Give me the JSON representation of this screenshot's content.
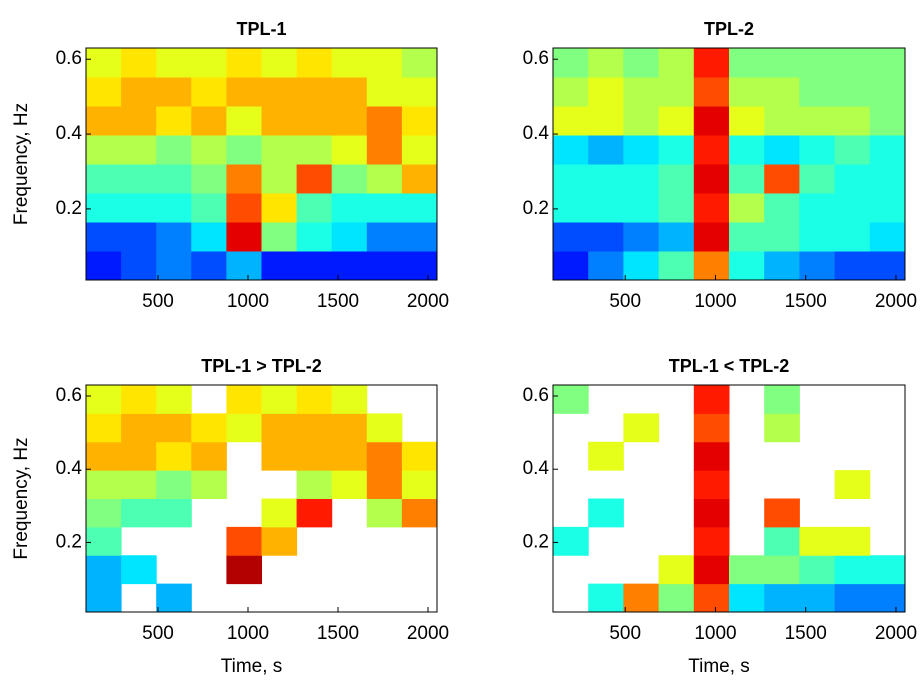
{
  "chart_data": [
    {
      "type": "heatmap",
      "title": "TPL-1",
      "ylabel": "Frequency, Hz",
      "colormap": "jet",
      "xlim": [
        100,
        2050
      ],
      "ylim": [
        0.01,
        0.63
      ],
      "xticks": [
        500,
        1000,
        1500,
        2000
      ],
      "yticks": [
        0.2,
        0.4,
        0.6
      ],
      "xbins": [
        100,
        295,
        490,
        685,
        880,
        1075,
        1270,
        1465,
        1660,
        1855,
        2050
      ],
      "ybins": [
        0.01,
        0.0875,
        0.165,
        0.2425,
        0.32,
        0.3975,
        0.475,
        0.5525,
        0.63
      ],
      "z": [
        [
          0.15,
          0.2,
          0.25,
          0.2,
          0.3,
          0.15,
          0.15,
          0.15,
          0.15,
          0.15
        ],
        [
          0.2,
          0.2,
          0.25,
          0.35,
          0.9,
          0.5,
          0.4,
          0.35,
          0.25,
          0.25
        ],
        [
          0.4,
          0.4,
          0.4,
          0.45,
          0.8,
          0.65,
          0.45,
          0.4,
          0.4,
          0.4
        ],
        [
          0.45,
          0.45,
          0.45,
          0.5,
          0.75,
          0.55,
          0.8,
          0.5,
          0.55,
          0.7
        ],
        [
          0.55,
          0.55,
          0.5,
          0.55,
          0.5,
          0.55,
          0.55,
          0.6,
          0.75,
          0.6
        ],
        [
          0.7,
          0.7,
          0.65,
          0.7,
          0.6,
          0.7,
          0.7,
          0.7,
          0.75,
          0.65
        ],
        [
          0.65,
          0.7,
          0.7,
          0.65,
          0.7,
          0.7,
          0.7,
          0.7,
          0.6,
          0.6
        ],
        [
          0.6,
          0.65,
          0.6,
          0.6,
          0.65,
          0.6,
          0.65,
          0.6,
          0.6,
          0.55
        ]
      ]
    },
    {
      "type": "heatmap",
      "title": "TPL-2",
      "colormap": "jet",
      "xlim": [
        100,
        2050
      ],
      "ylim": [
        0.01,
        0.63
      ],
      "xticks": [
        500,
        1000,
        1500,
        2000
      ],
      "yticks": [
        0.2,
        0.4,
        0.6
      ],
      "xbins": [
        100,
        295,
        490,
        685,
        880,
        1075,
        1270,
        1465,
        1660,
        1855,
        2050
      ],
      "ybins": [
        0.01,
        0.0875,
        0.165,
        0.2425,
        0.32,
        0.3975,
        0.475,
        0.5525,
        0.63
      ],
      "z": [
        [
          0.15,
          0.25,
          0.35,
          0.45,
          0.75,
          0.4,
          0.3,
          0.25,
          0.2,
          0.2
        ],
        [
          0.2,
          0.2,
          0.25,
          0.3,
          0.9,
          0.45,
          0.45,
          0.4,
          0.4,
          0.35
        ],
        [
          0.4,
          0.4,
          0.4,
          0.45,
          0.85,
          0.55,
          0.45,
          0.4,
          0.4,
          0.4
        ],
        [
          0.4,
          0.4,
          0.4,
          0.45,
          0.9,
          0.45,
          0.8,
          0.45,
          0.4,
          0.4
        ],
        [
          0.35,
          0.3,
          0.35,
          0.4,
          0.85,
          0.4,
          0.35,
          0.4,
          0.45,
          0.4
        ],
        [
          0.6,
          0.6,
          0.55,
          0.6,
          0.9,
          0.6,
          0.55,
          0.55,
          0.55,
          0.5
        ],
        [
          0.55,
          0.6,
          0.55,
          0.55,
          0.8,
          0.55,
          0.55,
          0.5,
          0.5,
          0.5
        ],
        [
          0.5,
          0.55,
          0.5,
          0.55,
          0.85,
          0.5,
          0.5,
          0.5,
          0.5,
          0.5
        ]
      ]
    },
    {
      "type": "heatmap",
      "title": "TPL-1 > TPL-2",
      "ylabel": "Frequency, Hz",
      "xlabel": "Time, s",
      "colormap": "jet",
      "xlim": [
        100,
        2050
      ],
      "ylim": [
        0.01,
        0.63
      ],
      "xticks": [
        500,
        1000,
        1500,
        2000
      ],
      "yticks": [
        0.2,
        0.4,
        0.6
      ],
      "xbins": [
        100,
        295,
        490,
        685,
        880,
        1075,
        1270,
        1465,
        1660,
        1855,
        2050
      ],
      "ybins": [
        0.01,
        0.0875,
        0.165,
        0.2425,
        0.32,
        0.3975,
        0.475,
        0.5525,
        0.63
      ],
      "z": [
        [
          0.3,
          null,
          0.3,
          null,
          null,
          null,
          null,
          null,
          null,
          null
        ],
        [
          0.3,
          0.35,
          null,
          null,
          0.95,
          null,
          null,
          null,
          null,
          null
        ],
        [
          0.45,
          null,
          null,
          null,
          0.8,
          0.7,
          null,
          null,
          null,
          null
        ],
        [
          0.5,
          0.45,
          0.45,
          null,
          null,
          0.6,
          0.85,
          null,
          0.55,
          0.75
        ],
        [
          0.55,
          0.55,
          0.5,
          0.55,
          null,
          null,
          0.55,
          0.6,
          0.75,
          0.6
        ],
        [
          0.7,
          0.7,
          0.65,
          0.7,
          null,
          0.7,
          0.7,
          0.7,
          0.75,
          0.65
        ],
        [
          0.65,
          0.7,
          0.7,
          0.65,
          0.6,
          0.7,
          0.7,
          0.7,
          0.6,
          null
        ],
        [
          0.6,
          0.65,
          0.6,
          null,
          0.65,
          0.6,
          0.65,
          0.6,
          null,
          null
        ]
      ]
    },
    {
      "type": "heatmap",
      "title": "TPL-1 < TPL-2",
      "xlabel": "Time, s",
      "colormap": "jet",
      "xlim": [
        100,
        2050
      ],
      "ylim": [
        0.01,
        0.63
      ],
      "xticks": [
        500,
        1000,
        1500,
        2000
      ],
      "yticks": [
        0.2,
        0.4,
        0.6
      ],
      "xbins": [
        100,
        295,
        490,
        685,
        880,
        1075,
        1270,
        1465,
        1660,
        1855,
        2050
      ],
      "ybins": [
        0.01,
        0.0875,
        0.165,
        0.2425,
        0.32,
        0.3975,
        0.475,
        0.5525,
        0.63
      ],
      "z": [
        [
          null,
          0.4,
          0.75,
          0.5,
          0.8,
          0.35,
          0.3,
          0.3,
          0.25,
          0.25
        ],
        [
          null,
          null,
          null,
          0.6,
          0.9,
          0.5,
          0.5,
          0.45,
          0.4,
          0.4
        ],
        [
          0.4,
          null,
          null,
          null,
          0.85,
          null,
          0.45,
          0.6,
          0.6,
          null
        ],
        [
          null,
          0.4,
          null,
          null,
          0.9,
          null,
          0.8,
          null,
          null,
          null
        ],
        [
          null,
          null,
          null,
          null,
          0.85,
          null,
          null,
          null,
          0.6,
          null
        ],
        [
          null,
          0.6,
          null,
          null,
          0.9,
          null,
          null,
          null,
          null,
          null
        ],
        [
          null,
          null,
          0.6,
          null,
          0.8,
          null,
          0.55,
          null,
          null,
          null
        ],
        [
          0.5,
          null,
          null,
          null,
          0.85,
          null,
          0.5,
          null,
          null,
          null
        ]
      ]
    }
  ]
}
